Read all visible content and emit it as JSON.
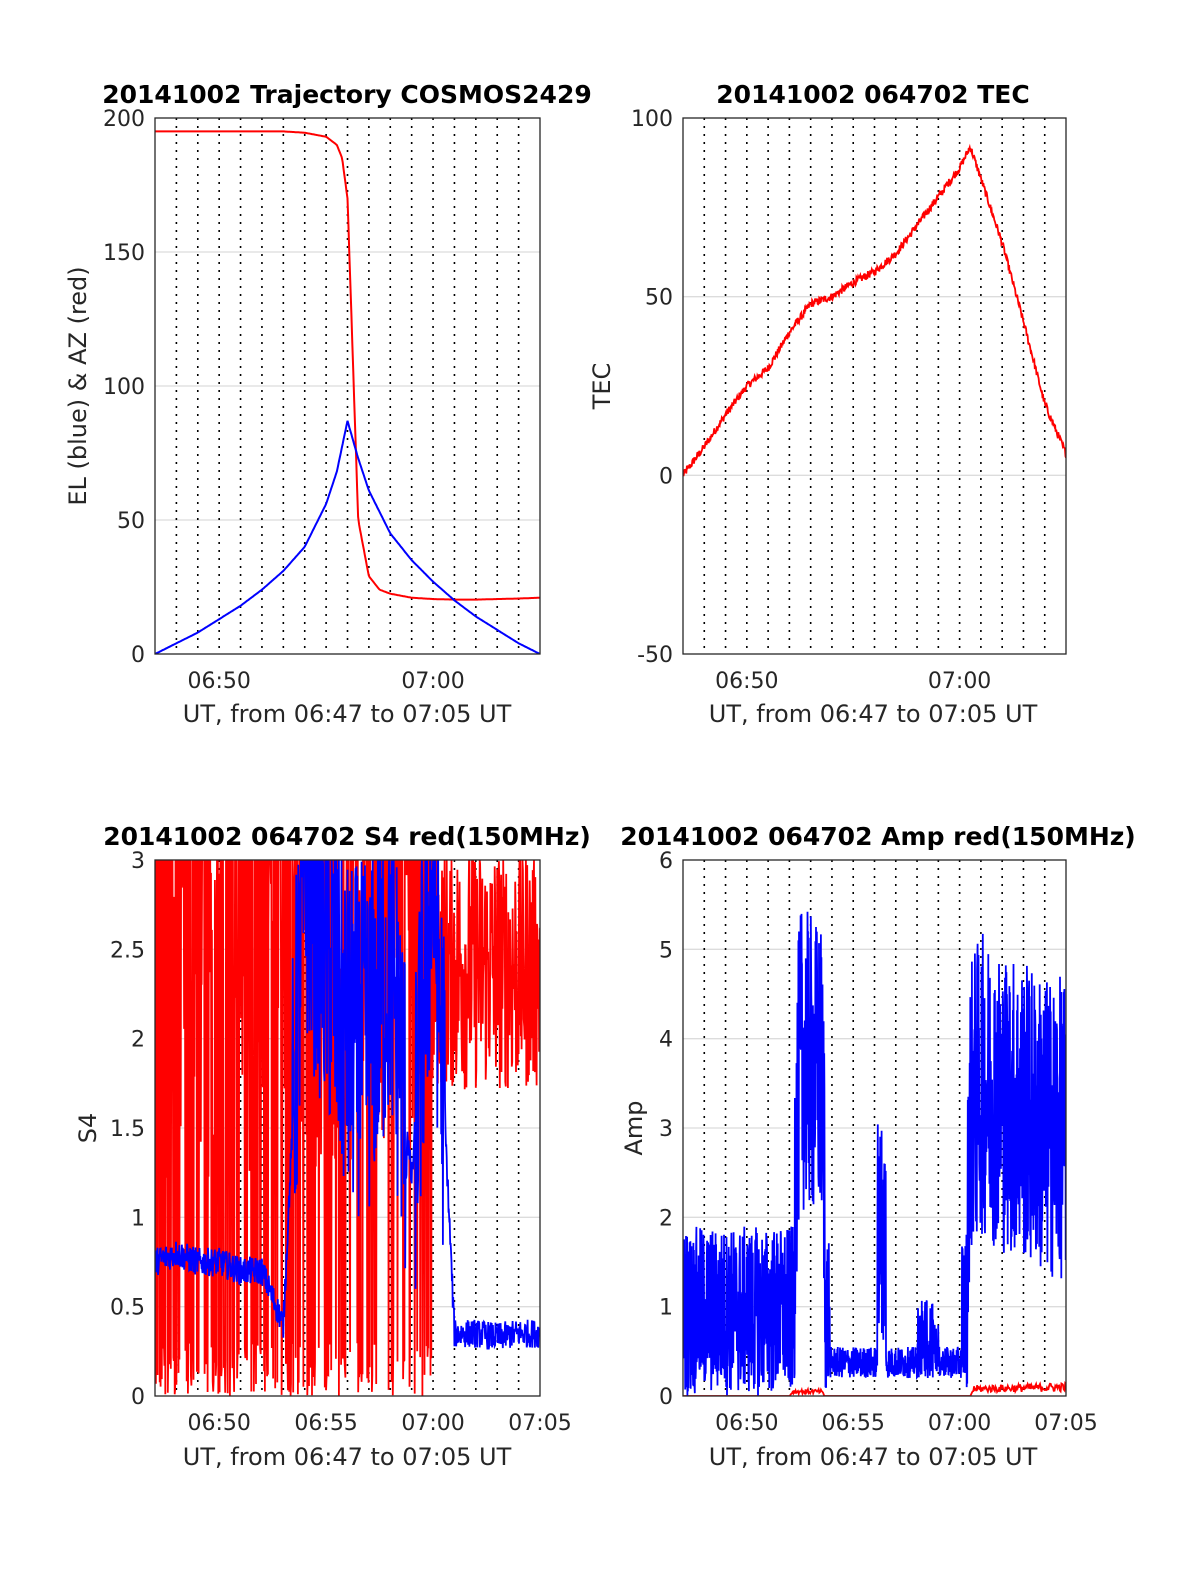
{
  "figure": {
    "xlabel": "UT, from 06:47 to 07:05 UT"
  },
  "chart_data": [
    {
      "id": "trajectory",
      "type": "line",
      "title": "20141002 Trajectory COSMOS2429",
      "xlabel": "UT, from 06:47 to 07:05 UT",
      "ylabel": "EL (blue) & AZ (red)",
      "xlim": [
        "06:47",
        "07:05"
      ],
      "ylim": [
        0,
        200
      ],
      "yticks": [
        0,
        50,
        100,
        150,
        200
      ],
      "xticks": [
        "06:50",
        "07:00"
      ],
      "grid": true,
      "series": [
        {
          "color": "#ff0000",
          "x": [
            "06:47",
            "06:49",
            "06:51",
            "06:53",
            "06:54",
            "06:55",
            "06:55:30",
            "06:55:45",
            "06:56",
            "06:56:15",
            "06:56:30",
            "06:57",
            "06:57:30",
            "06:58",
            "06:59",
            "07:00",
            "07:01",
            "07:02",
            "07:03",
            "07:04",
            "07:05"
          ],
          "values": [
            195,
            195,
            195,
            195,
            194.5,
            193,
            190,
            185,
            170,
            110,
            50,
            29,
            24,
            22.5,
            21,
            20.5,
            20.3,
            20.3,
            20.5,
            20.7,
            21
          ]
        },
        {
          "color": "#0000ff",
          "x": [
            "06:47",
            "06:48",
            "06:49",
            "06:50",
            "06:51",
            "06:52",
            "06:53",
            "06:54",
            "06:55",
            "06:55:30",
            "06:56",
            "06:56:30",
            "06:57",
            "06:58",
            "06:59",
            "07:00",
            "07:01",
            "07:02",
            "07:03",
            "07:04",
            "07:05"
          ],
          "values": [
            0,
            4,
            8,
            13,
            18,
            24,
            31,
            40,
            56,
            68,
            87,
            73,
            61,
            45,
            35,
            27,
            20,
            14,
            9,
            4,
            0
          ]
        }
      ]
    },
    {
      "id": "tec",
      "type": "line",
      "title": "20141002 064702 TEC",
      "xlabel": "UT, from 06:47 to 07:05 UT",
      "ylabel": "TEC",
      "xlim": [
        "06:47",
        "07:05"
      ],
      "ylim": [
        -50,
        100
      ],
      "yticks": [
        -50,
        0,
        50,
        100
      ],
      "xticks": [
        "06:50",
        "07:00"
      ],
      "grid": true,
      "series": [
        {
          "color": "#ff0000",
          "x": [
            "06:47",
            "06:48",
            "06:49",
            "06:50",
            "06:51",
            "06:52",
            "06:53",
            "06:54",
            "06:55",
            "06:56",
            "06:57",
            "06:58",
            "06:59",
            "07:00",
            "07:00:30",
            "07:01",
            "07:02",
            "07:03",
            "07:04",
            "07:05"
          ],
          "values": [
            0,
            8,
            17,
            25,
            30,
            40,
            48,
            50,
            54,
            57,
            62,
            70,
            78,
            86,
            92,
            83,
            65,
            43,
            20,
            6
          ]
        }
      ]
    },
    {
      "id": "s4",
      "type": "line",
      "title": "20141002 064702 S4 red(150MHz)",
      "xlabel": "UT, from 06:47 to 07:05 UT",
      "ylabel": "S4",
      "xlim": [
        "06:47",
        "07:05"
      ],
      "ylim": [
        0,
        3
      ],
      "yticks": [
        0,
        0.5,
        1,
        1.5,
        2,
        2.5,
        3
      ],
      "ytick_labels": [
        "0",
        "0.5",
        "1",
        "1.5",
        "2",
        "2.5",
        "3"
      ],
      "xticks": [
        "06:50",
        "06:55",
        "07:00",
        "07:05"
      ],
      "grid": true,
      "series": [
        {
          "color": "#ff0000",
          "note_values": "noisy signal saturating between 0 and 3",
          "x": [
            "06:47",
            "06:49",
            "06:51",
            "06:53",
            "06:55",
            "06:57",
            "06:59",
            "07:01",
            "07:03",
            "07:05"
          ],
          "values": [
            3,
            3,
            3,
            3,
            3,
            2.4,
            3,
            2.6,
            2.5,
            2.4
          ]
        },
        {
          "color": "#0000ff",
          "x": [
            "06:47",
            "06:48",
            "06:49",
            "06:50",
            "06:51",
            "06:52",
            "06:53",
            "06:54",
            "06:55",
            "06:56",
            "06:57",
            "06:58",
            "06:59",
            "07:00",
            "07:01",
            "07:02",
            "07:03",
            "07:04",
            "07:05"
          ],
          "values": [
            0.75,
            0.8,
            0.75,
            0.75,
            0.7,
            0.7,
            0.4,
            3,
            2.5,
            2.0,
            2.0,
            2.5,
            1.2,
            3,
            0.35,
            0.35,
            0.33,
            0.35,
            0.35
          ]
        }
      ]
    },
    {
      "id": "amp",
      "type": "line",
      "title": "20141002 064702 Amp red(150MHz)",
      "xlabel": "UT, from 06:47 to 07:05 UT",
      "ylabel": "Amp",
      "xlim": [
        "06:47",
        "07:05"
      ],
      "ylim": [
        0,
        6
      ],
      "yticks": [
        0,
        1,
        2,
        3,
        4,
        5,
        6
      ],
      "xticks": [
        "06:50",
        "06:55",
        "07:00",
        "07:05"
      ],
      "grid": true,
      "series": [
        {
          "color": "#ff0000",
          "x": [
            "06:47",
            "06:52",
            "06:52:10",
            "06:53:30",
            "06:53:40",
            "07:00:30",
            "07:00:40",
            "07:05"
          ],
          "values": [
            0,
            0,
            0.05,
            0.05,
            0,
            0,
            0.08,
            0.1
          ]
        },
        {
          "color": "#0000ff",
          "x": [
            "06:47",
            "06:48",
            "06:49",
            "06:50",
            "06:51",
            "06:52",
            "06:52:30",
            "06:53",
            "06:53:30",
            "06:54",
            "06:55",
            "06:56",
            "06:57",
            "06:58",
            "06:59",
            "07:00",
            "07:00:30",
            "07:01",
            "07:02",
            "07:03",
            "07:04",
            "07:05"
          ],
          "values": [
            1.2,
            1.3,
            1.2,
            1.3,
            1.2,
            1.2,
            3.8,
            3.7,
            3.6,
            0.35,
            0.35,
            0.35,
            0.4,
            0.45,
            0.45,
            0.4,
            3.2,
            3.5,
            3.3,
            3.2,
            3.0,
            3.0
          ]
        }
      ]
    }
  ]
}
